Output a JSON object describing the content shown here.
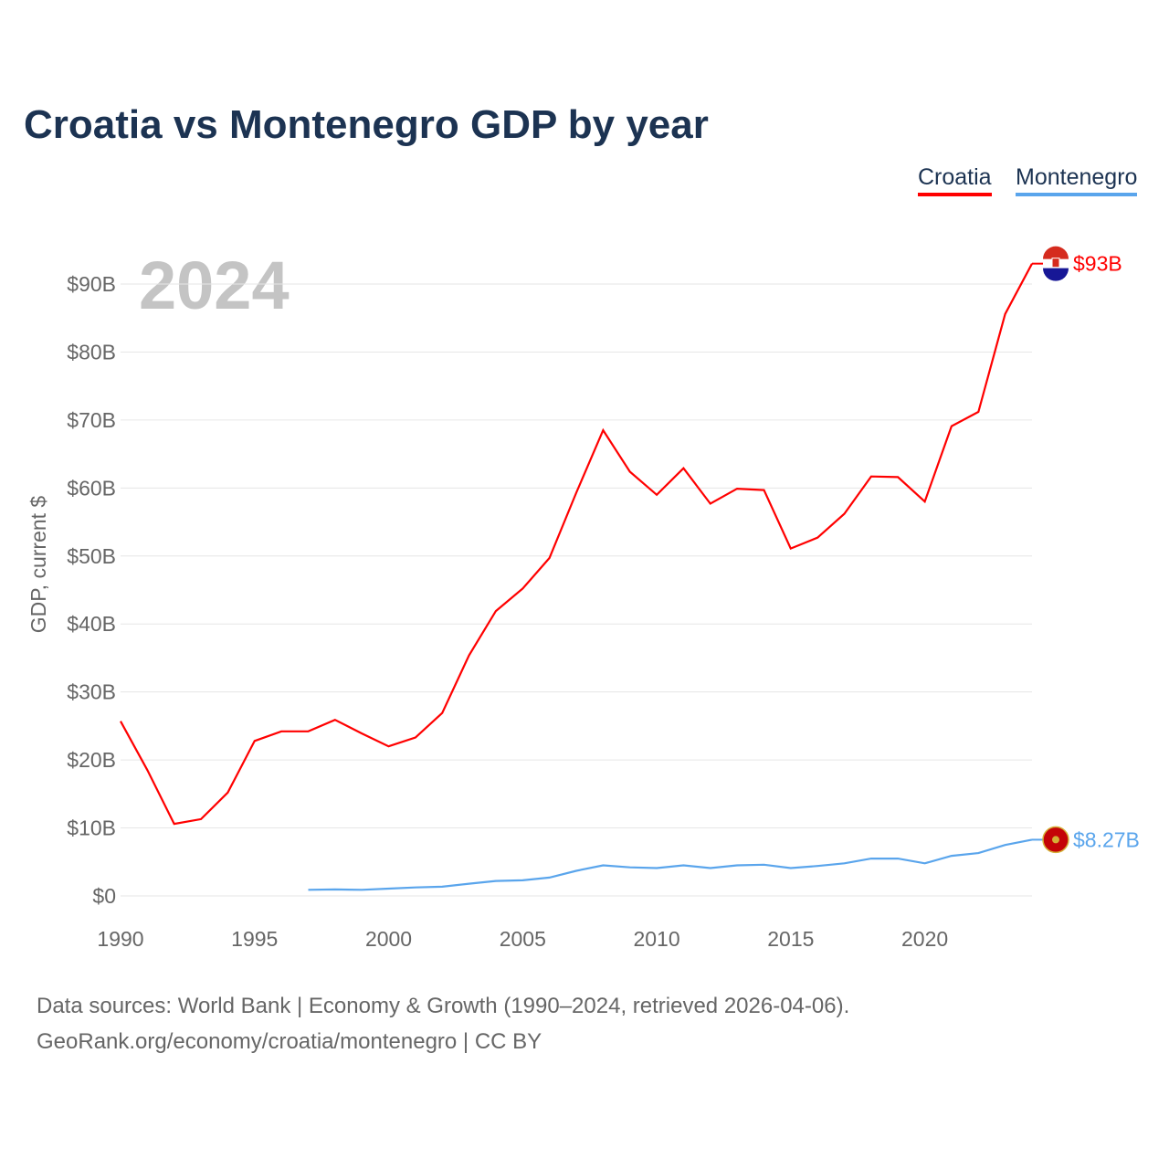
{
  "title": "Croatia vs Montenegro GDP by year",
  "footer": {
    "line1": "Data sources: World Bank | Economy & Growth (1990–2024, retrieved 2026-04-06).",
    "line2": "GeoRank.org/economy/croatia/montenegro | CC BY"
  },
  "chart_data": {
    "type": "line",
    "title": "Croatia vs Montenegro GDP by year",
    "year_label": "2024",
    "xlabel": "",
    "ylabel": "GDP, current $",
    "xlim": [
      1990,
      2024
    ],
    "ylim": [
      0,
      90
    ],
    "x_ticks": [
      1990,
      1995,
      2000,
      2005,
      2010,
      2015,
      2020
    ],
    "y_ticks": [
      {
        "v": 0,
        "label": "$0"
      },
      {
        "v": 10,
        "label": "$10B"
      },
      {
        "v": 20,
        "label": "$20B"
      },
      {
        "v": 30,
        "label": "$30B"
      },
      {
        "v": 40,
        "label": "$40B"
      },
      {
        "v": 50,
        "label": "$50B"
      },
      {
        "v": 60,
        "label": "$60B"
      },
      {
        "v": 70,
        "label": "$70B"
      },
      {
        "v": 80,
        "label": "$80B"
      },
      {
        "v": 90,
        "label": "$90B"
      }
    ],
    "legend_position": "top-right",
    "series": [
      {
        "name": "Croatia",
        "color": "#ff0000",
        "end_label": "$93B",
        "start": 1990,
        "values": [
          25.7,
          18.5,
          10.6,
          11.3,
          15.2,
          22.8,
          24.2,
          24.2,
          25.9,
          23.9,
          22.0,
          23.3,
          26.9,
          35.4,
          41.9,
          45.2,
          49.7,
          59.3,
          68.5,
          62.4,
          59.0,
          62.9,
          57.7,
          59.9,
          59.7,
          51.1,
          52.7,
          56.2,
          61.7,
          61.6,
          58.0,
          69.1,
          71.2,
          85.6,
          93.0
        ]
      },
      {
        "name": "Montenegro",
        "color": "#5aa5ec",
        "end_label": "$8.27B",
        "start": 1997,
        "values": [
          0.9,
          0.95,
          0.9,
          1.07,
          1.25,
          1.36,
          1.8,
          2.2,
          2.3,
          2.7,
          3.7,
          4.5,
          4.2,
          4.1,
          4.5,
          4.1,
          4.5,
          4.6,
          4.1,
          4.4,
          4.8,
          5.5,
          5.5,
          4.8,
          5.9,
          6.3,
          7.5,
          8.27
        ]
      }
    ]
  }
}
